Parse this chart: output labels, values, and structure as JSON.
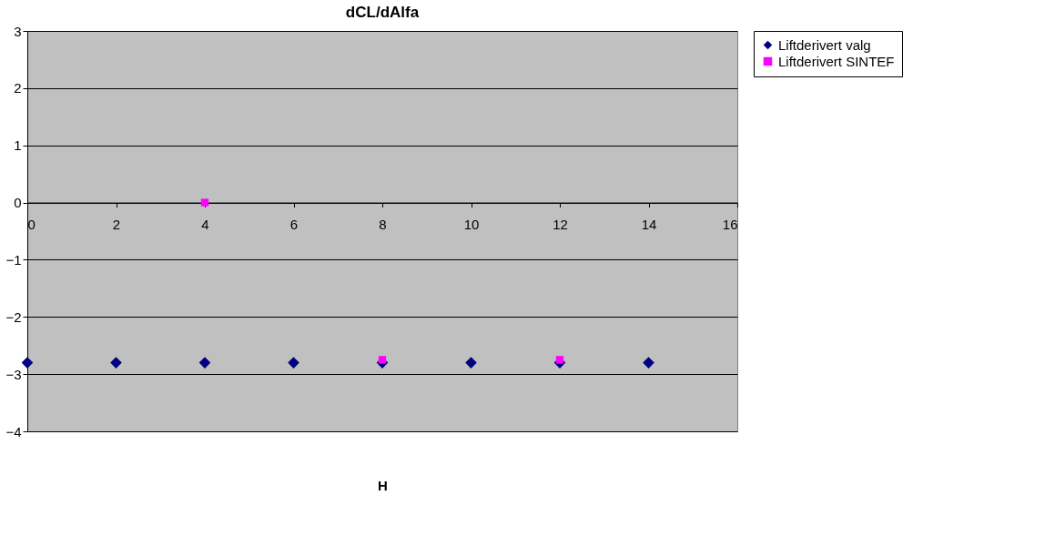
{
  "chart_data": {
    "type": "scatter",
    "title": "dCL/dAlfa",
    "xlabel": "H",
    "xlim": [
      0,
      16
    ],
    "xticks": [
      0,
      2,
      4,
      6,
      8,
      10,
      12,
      14,
      16
    ],
    "ylim": [
      -4,
      3
    ],
    "yticks": [
      -4,
      -3,
      -2,
      -1,
      0,
      1,
      2,
      3
    ],
    "grid": "y",
    "legend": "right",
    "series": [
      {
        "name": "Liftderivert valg",
        "color": "#000080",
        "marker": "diamond",
        "x": [
          0,
          2,
          4,
          6,
          8,
          10,
          12,
          14
        ],
        "values": [
          -2.8,
          -2.8,
          -2.8,
          -2.8,
          -2.8,
          -2.8,
          -2.8,
          -2.8
        ]
      },
      {
        "name": "Liftderivert SINTEF",
        "color": "#ff00ff",
        "marker": "square",
        "x": [
          4,
          8,
          12
        ],
        "values": [
          0,
          -2.75,
          -2.75
        ]
      }
    ]
  }
}
